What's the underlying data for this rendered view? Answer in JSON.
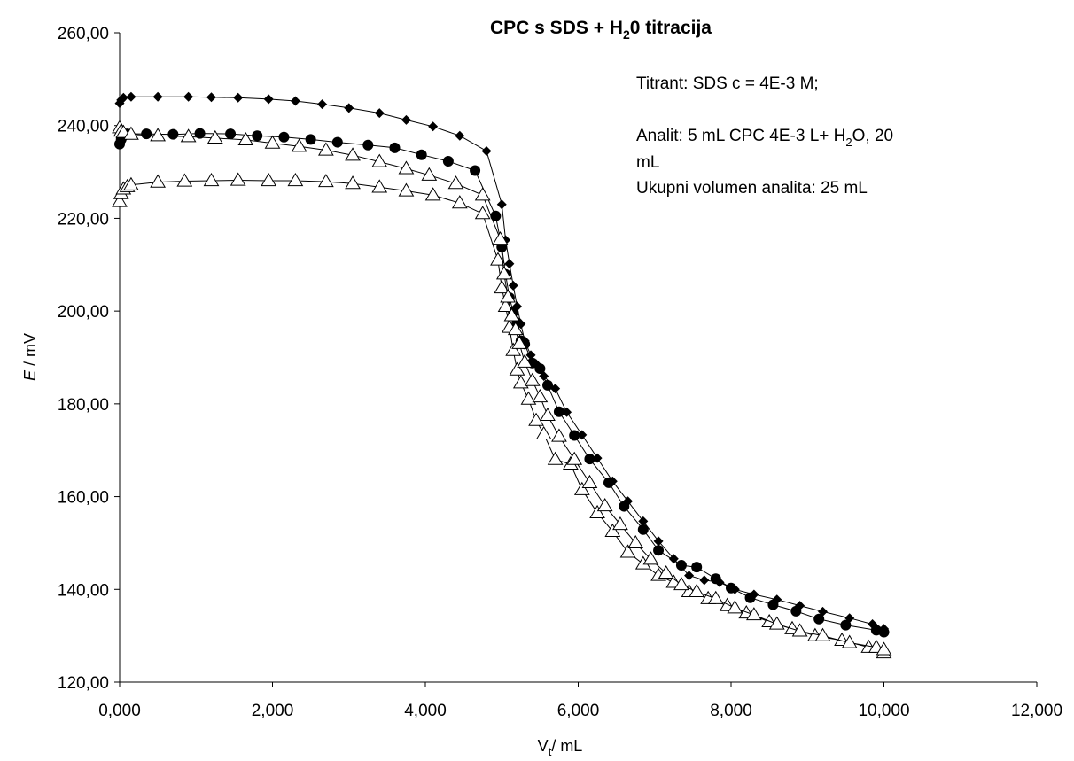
{
  "chart_data": {
    "type": "scatter",
    "title": {
      "prefix": "CPC s SDS + H",
      "sub": "2",
      "suffix": "0  titracija"
    },
    "xlabel": {
      "main": "V",
      "sub": "t",
      "rest": "/ mL"
    },
    "ylabel": {
      "italic": "E",
      "rest": " / mV"
    },
    "xlim": [
      0,
      12
    ],
    "ylim": [
      120,
      260
    ],
    "x_ticks": [
      "0,000",
      "2,000",
      "4,000",
      "6,000",
      "8,000",
      "10,000",
      "12,000"
    ],
    "y_ticks": [
      "120,00",
      "140,00",
      "160,00",
      "180,00",
      "200,00",
      "220,00",
      "240,00",
      "260,00"
    ],
    "annotations": {
      "line1": "Titrant: SDS c = 4E-3 M;",
      "line2_prefix": "Analit: 5 mL CPC 4E-3 L+ H",
      "line2_sub": "2",
      "line2_suffix": "O, 20",
      "line3": "mL",
      "line4": "Ukupni volumen analita: 25 mL"
    },
    "series": [
      {
        "marker": "diamond-filled",
        "x": [
          0.0,
          0.02,
          0.05,
          0.15,
          0.5,
          0.9,
          1.2,
          1.55,
          1.95,
          2.3,
          2.65,
          3.0,
          3.4,
          3.75,
          4.1,
          4.45,
          4.8,
          5.0,
          5.05,
          5.1,
          5.15,
          5.2,
          5.25,
          5.3,
          5.38,
          5.45,
          5.55,
          5.7,
          5.85,
          6.05,
          6.25,
          6.45,
          6.65,
          6.85,
          7.05,
          7.25,
          7.45,
          7.65,
          7.85,
          8.05,
          8.3,
          8.6,
          8.9,
          9.2,
          9.55,
          9.85,
          10.0
        ],
        "y": [
          244.8,
          245.5,
          246.0,
          246.2,
          246.2,
          246.2,
          246.1,
          246.0,
          245.7,
          245.3,
          244.6,
          243.8,
          242.7,
          241.2,
          239.8,
          237.8,
          234.5,
          223.0,
          215.3,
          210.2,
          205.5,
          201.0,
          197.2,
          193.6,
          190.5,
          188.6,
          186.0,
          183.3,
          178.2,
          173.3,
          168.3,
          163.3,
          159.0,
          154.7,
          150.4,
          146.6,
          143.0,
          142.0,
          141.5,
          140.0,
          138.9,
          137.8,
          136.5,
          135.2,
          133.8,
          132.5,
          131.5
        ]
      },
      {
        "marker": "circle-filled",
        "x": [
          0.0,
          0.02,
          0.05,
          0.1,
          0.35,
          0.7,
          1.05,
          1.45,
          1.8,
          2.15,
          2.5,
          2.85,
          3.25,
          3.6,
          3.95,
          4.3,
          4.65,
          4.92,
          5.0,
          5.05,
          5.1,
          5.15,
          5.2,
          5.25,
          5.3,
          5.4,
          5.5,
          5.6,
          5.75,
          5.95,
          6.15,
          6.4,
          6.6,
          6.85,
          7.05,
          7.35,
          7.55,
          7.8,
          8.0,
          8.25,
          8.55,
          8.85,
          9.15,
          9.5,
          9.9,
          10.0
        ],
        "y": [
          236.0,
          237.0,
          237.8,
          238.2,
          238.2,
          238.1,
          238.3,
          238.2,
          237.8,
          237.5,
          237.0,
          236.4,
          235.8,
          235.2,
          233.7,
          232.3,
          230.3,
          220.5,
          213.8,
          207.9,
          202.9,
          199.8,
          197.5,
          193.6,
          192.9,
          188.8,
          187.6,
          184.0,
          178.3,
          173.2,
          168.1,
          163.0,
          157.9,
          152.9,
          148.4,
          145.2,
          144.8,
          142.3,
          140.3,
          138.2,
          136.7,
          135.3,
          133.6,
          132.3,
          131.2,
          130.8
        ]
      },
      {
        "marker": "triangle-open",
        "x": [
          0.0,
          0.02,
          0.05,
          0.1,
          0.15,
          0.5,
          0.85,
          1.2,
          1.55,
          1.95,
          2.3,
          2.7,
          3.05,
          3.4,
          3.75,
          4.1,
          4.45,
          4.75,
          4.95,
          5.0,
          5.05,
          5.1,
          5.15,
          5.2,
          5.25,
          5.35,
          5.45,
          5.55,
          5.7,
          5.9,
          6.05,
          6.25,
          6.45,
          6.65,
          6.85,
          7.05,
          7.25,
          7.45,
          7.7,
          7.95,
          8.2,
          8.5,
          8.8,
          9.1,
          9.45,
          9.8,
          10.0
        ],
        "y": [
          223.6,
          225.3,
          226.3,
          226.8,
          227.2,
          227.8,
          228.0,
          228.1,
          228.2,
          228.1,
          228.1,
          227.9,
          227.5,
          226.7,
          225.9,
          225.0,
          223.3,
          221.0,
          211.0,
          205.0,
          201.0,
          196.5,
          191.5,
          187.3,
          184.5,
          181.0,
          176.4,
          173.5,
          168.0,
          167.0,
          161.5,
          156.5,
          152.5,
          148.0,
          145.5,
          143.0,
          141.5,
          139.5,
          138.0,
          136.5,
          134.9,
          133.0,
          131.5,
          130.0,
          129.0,
          127.5,
          126.3
        ]
      },
      {
        "marker": "triangle-open",
        "x": [
          0.0,
          0.02,
          0.05,
          0.15,
          0.5,
          0.9,
          1.25,
          1.65,
          2.0,
          2.35,
          2.7,
          3.05,
          3.4,
          3.75,
          4.05,
          4.4,
          4.75,
          4.98,
          5.03,
          5.08,
          5.13,
          5.18,
          5.23,
          5.3,
          5.4,
          5.5,
          5.6,
          5.75,
          5.95,
          6.15,
          6.35,
          6.55,
          6.75,
          6.95,
          7.15,
          7.35,
          7.55,
          7.8,
          8.05,
          8.3,
          8.6,
          8.9,
          9.2,
          9.55,
          9.9,
          10.0
        ],
        "y": [
          239.5,
          238.8,
          238.5,
          238.1,
          237.8,
          237.6,
          237.3,
          236.9,
          236.2,
          235.5,
          234.7,
          233.6,
          232.2,
          230.7,
          229.3,
          227.5,
          225.0,
          215.5,
          208.0,
          203.0,
          199.0,
          196.0,
          193.0,
          189.0,
          185.0,
          181.5,
          177.5,
          173.0,
          168.0,
          163.0,
          158.0,
          154.0,
          150.0,
          146.5,
          143.5,
          141.0,
          139.5,
          138.0,
          136.0,
          134.5,
          132.5,
          131.0,
          130.0,
          128.5,
          127.5,
          127.0
        ]
      }
    ]
  }
}
